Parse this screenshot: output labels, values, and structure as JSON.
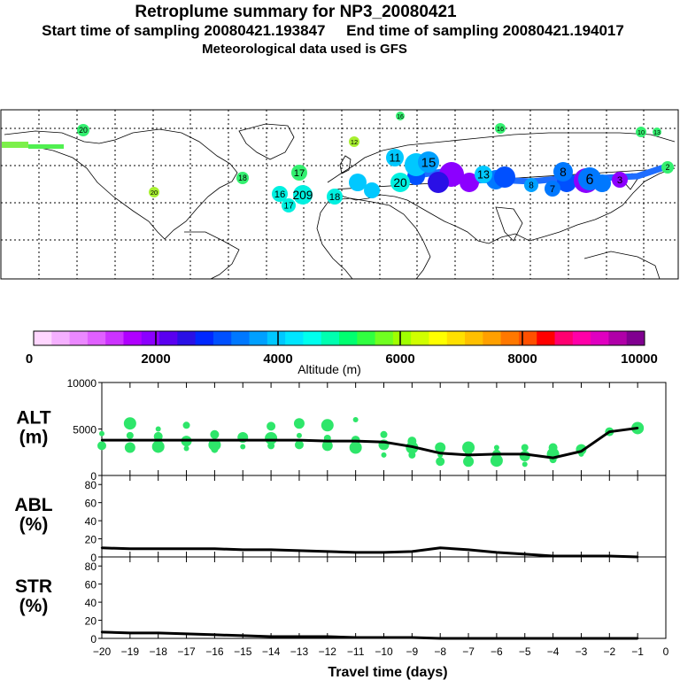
{
  "header": {
    "title": "Retroplume summary for NP3_20080421",
    "start_label": "Start time of sampling 20080421.193847",
    "end_label": "End time of sampling 20080421.194017",
    "met_label": "Meteorological data used is GFS"
  },
  "colorbar": {
    "tick_labels": [
      "0",
      "2000",
      "4000",
      "6000",
      "8000",
      "10000"
    ],
    "label": "Altitude (m)",
    "colors": [
      "#ffd6ff",
      "#f5b0ff",
      "#eb88ff",
      "#e060ff",
      "#cc33ff",
      "#b000ff",
      "#8c00ff",
      "#5a00f0",
      "#2a10e6",
      "#0028ff",
      "#0050ff",
      "#0078ff",
      "#00a0ff",
      "#00c8ff",
      "#00e6ff",
      "#00ffee",
      "#00ffb0",
      "#00ff70",
      "#30ff40",
      "#70ff20",
      "#a0ff00",
      "#d0ff00",
      "#ffff00",
      "#ffe000",
      "#ffc000",
      "#ffa000",
      "#ff7800",
      "#ff5000",
      "#ff0000",
      "#ff0070",
      "#ff00a8",
      "#e000c0",
      "#b000a8",
      "#800090"
    ]
  },
  "map_labels": [
    {
      "t": "20",
      "c": "#34f070"
    },
    {
      "t": "16",
      "c": "#34f070"
    },
    {
      "t": "16",
      "c": "#34f070"
    },
    {
      "t": "12",
      "c": "#a8f030"
    },
    {
      "t": "17",
      "c": "#34f070"
    },
    {
      "t": "18",
      "c": "#34f070"
    },
    {
      "t": "20",
      "c": "#a8f030"
    },
    {
      "t": "17",
      "c": "#00f0e0"
    },
    {
      "t": "16",
      "c": "#00f0e0"
    },
    {
      "t": "209",
      "c": "#00f0e0"
    },
    {
      "t": "18",
      "c": "#00f0e0"
    },
    {
      "t": "20",
      "c": "#00f0e0"
    },
    {
      "t": "11",
      "c": "#00c8ff"
    },
    {
      "t": "15",
      "c": "#00a0ff"
    },
    {
      "t": "13",
      "c": "#00c8ff"
    },
    {
      "t": "8",
      "c": "#00a0ff"
    },
    {
      "t": "7",
      "c": "#0078ff"
    },
    {
      "t": "8",
      "c": "#0078ff"
    },
    {
      "t": "6",
      "c": "#0078ff"
    },
    {
      "t": "3",
      "c": "#8c00ff"
    },
    {
      "t": "2",
      "c": "#34f070"
    },
    {
      "t": "10",
      "c": "#34f070"
    },
    {
      "t": "13",
      "c": "#34f070"
    }
  ],
  "chart_data": [
    {
      "type": "line",
      "panel": "ALT",
      "ylabel": "ALT\n(m)",
      "ylim": [
        0,
        10000
      ],
      "yticks": [
        0,
        5000,
        10000
      ],
      "x": [
        -20,
        -19,
        -18,
        -17,
        -16,
        -15,
        -14,
        -13,
        -12,
        -11,
        -10,
        -9,
        -8,
        -7,
        -6,
        -5,
        -4,
        -3,
        -2,
        -1
      ],
      "series": [
        {
          "name": "mean altitude",
          "values": [
            3800,
            3800,
            3800,
            3800,
            3800,
            3800,
            3800,
            3800,
            3700,
            3700,
            3600,
            3100,
            2400,
            2200,
            2300,
            2300,
            1900,
            2600,
            4700,
            5100
          ]
        }
      ],
      "scatter": [
        {
          "x": -20,
          "y": 4500
        },
        {
          "x": -20,
          "y": 3200
        },
        {
          "x": -19,
          "y": 5600
        },
        {
          "x": -19,
          "y": 4300
        },
        {
          "x": -19,
          "y": 3000
        },
        {
          "x": -18,
          "y": 5000
        },
        {
          "x": -18,
          "y": 4200
        },
        {
          "x": -18,
          "y": 3100
        },
        {
          "x": -17,
          "y": 5400
        },
        {
          "x": -17,
          "y": 3700
        },
        {
          "x": -17,
          "y": 2900
        },
        {
          "x": -16,
          "y": 4400
        },
        {
          "x": -16,
          "y": 3300
        },
        {
          "x": -16,
          "y": 2800
        },
        {
          "x": -15,
          "y": 4100
        },
        {
          "x": -15,
          "y": 3100
        },
        {
          "x": -14,
          "y": 5300
        },
        {
          "x": -14,
          "y": 4000
        },
        {
          "x": -14,
          "y": 3200
        },
        {
          "x": -13,
          "y": 5600
        },
        {
          "x": -13,
          "y": 4300
        },
        {
          "x": -13,
          "y": 3300
        },
        {
          "x": -12,
          "y": 5400
        },
        {
          "x": -12,
          "y": 4000
        },
        {
          "x": -12,
          "y": 3200
        },
        {
          "x": -11,
          "y": 6000
        },
        {
          "x": -11,
          "y": 3800
        },
        {
          "x": -11,
          "y": 3000
        },
        {
          "x": -10,
          "y": 4400
        },
        {
          "x": -10,
          "y": 3300
        },
        {
          "x": -10,
          "y": 2200
        },
        {
          "x": -9,
          "y": 3700
        },
        {
          "x": -9,
          "y": 3000
        },
        {
          "x": -9,
          "y": 2200
        },
        {
          "x": -8,
          "y": 3000
        },
        {
          "x": -8,
          "y": 2200
        },
        {
          "x": -8,
          "y": 1500
        },
        {
          "x": -7,
          "y": 3000
        },
        {
          "x": -7,
          "y": 2300
        },
        {
          "x": -7,
          "y": 1500
        },
        {
          "x": -6,
          "y": 3000
        },
        {
          "x": -6,
          "y": 2300
        },
        {
          "x": -6,
          "y": 1600
        },
        {
          "x": -5,
          "y": 3000
        },
        {
          "x": -5,
          "y": 2100
        },
        {
          "x": -5,
          "y": 1200
        },
        {
          "x": -4,
          "y": 3000
        },
        {
          "x": -4,
          "y": 2300
        },
        {
          "x": -4,
          "y": 1700
        },
        {
          "x": -3,
          "y": 2800
        },
        {
          "x": -3,
          "y": 2300
        },
        {
          "x": -2,
          "y": 4700
        },
        {
          "x": -1,
          "y": 5100
        }
      ]
    },
    {
      "type": "line",
      "panel": "ABL",
      "ylabel": "ABL\n(%)",
      "ylim": [
        0,
        90
      ],
      "yticks": [
        0,
        20,
        40,
        60,
        80
      ],
      "x": [
        -20,
        -19,
        -18,
        -17,
        -16,
        -15,
        -14,
        -13,
        -12,
        -11,
        -10,
        -9,
        -8,
        -7,
        -6,
        -5,
        -4,
        -3,
        -2,
        -1
      ],
      "series": [
        {
          "name": "ABL fraction",
          "values": [
            10,
            9,
            9,
            9,
            9,
            8,
            8,
            7,
            6,
            5,
            5,
            6,
            10,
            8,
            5,
            3,
            1,
            1,
            1,
            0
          ]
        }
      ]
    },
    {
      "type": "line",
      "panel": "STR",
      "ylabel": "STR\n(%)",
      "ylim": [
        0,
        90
      ],
      "yticks": [
        0,
        20,
        40,
        60,
        80
      ],
      "xlabel": "Travel time (days)",
      "xticks": [
        -20,
        -19,
        -18,
        -17,
        -16,
        -15,
        -14,
        -13,
        -12,
        -11,
        -10,
        -9,
        -8,
        -7,
        -6,
        -5,
        -4,
        -3,
        -2,
        -1,
        0
      ],
      "x": [
        -20,
        -19,
        -18,
        -17,
        -16,
        -15,
        -14,
        -13,
        -12,
        -11,
        -10,
        -9,
        -8,
        -7,
        -6,
        -5,
        -4,
        -3,
        -2,
        -1
      ],
      "series": [
        {
          "name": "stratosphere fraction",
          "values": [
            7,
            6,
            6,
            5,
            4,
            3,
            2,
            2,
            2,
            1,
            1,
            1,
            0,
            0,
            0,
            0,
            0,
            0,
            0,
            0
          ]
        }
      ]
    }
  ]
}
